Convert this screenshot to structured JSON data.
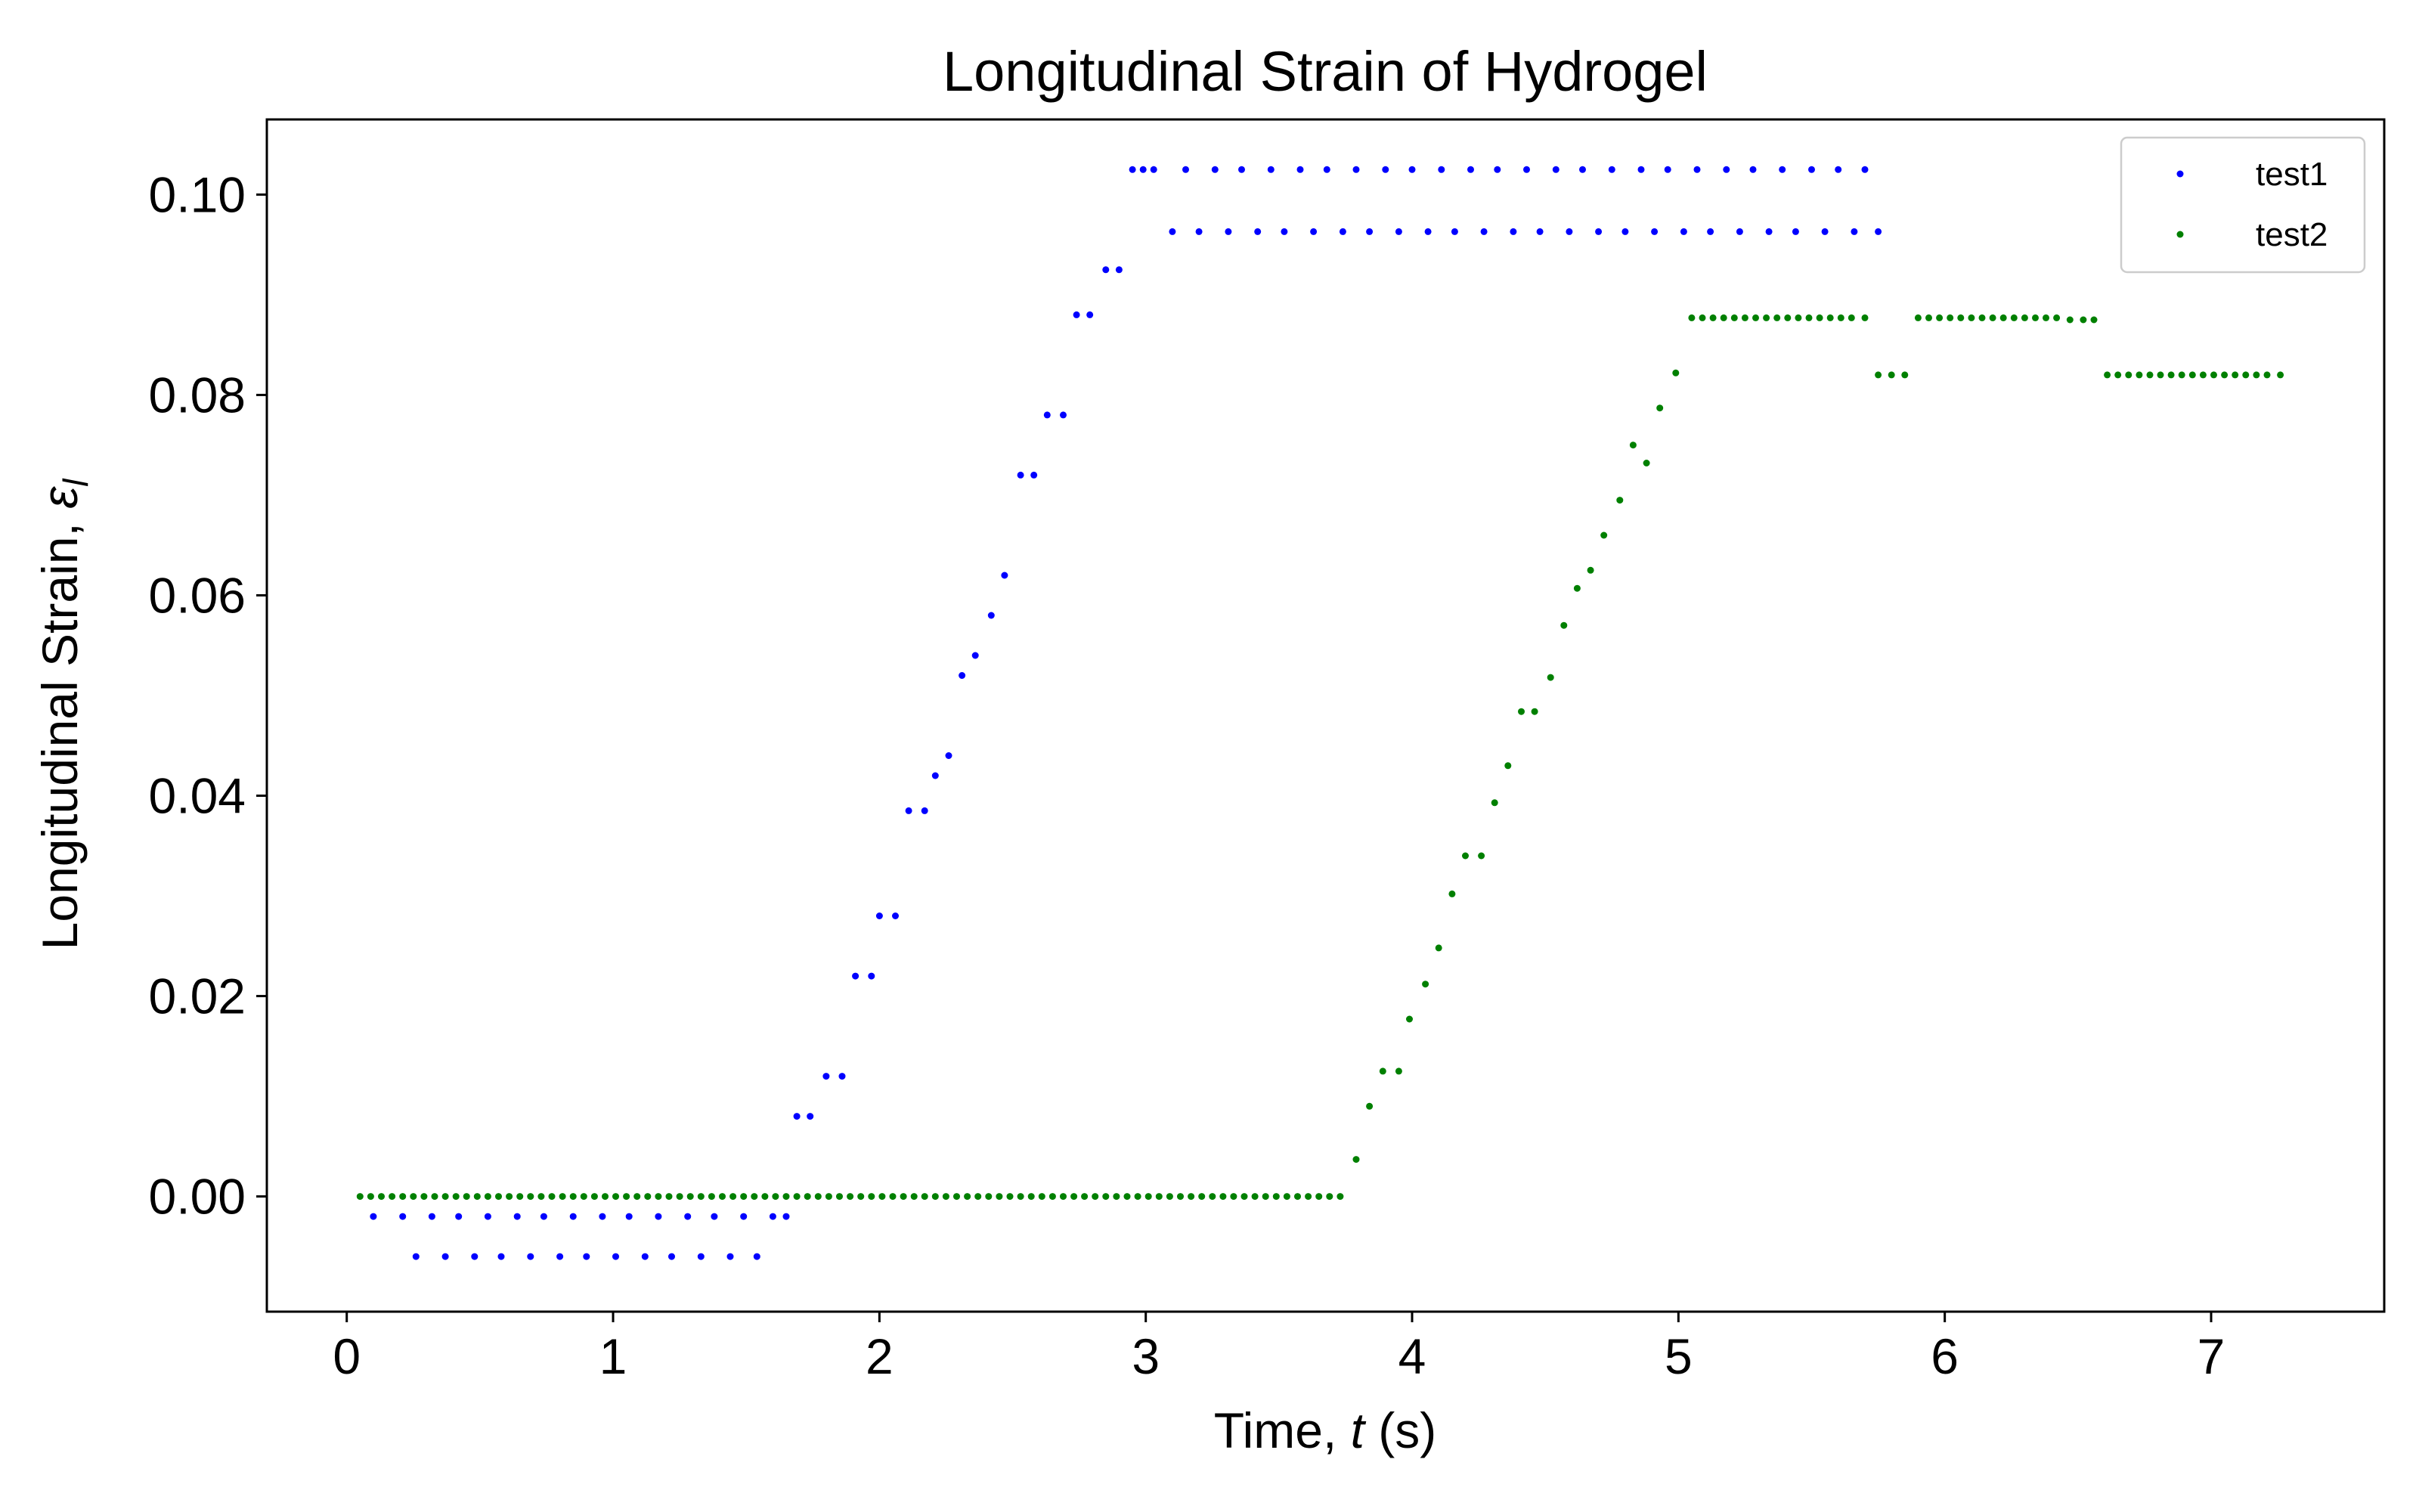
{
  "chart_data": {
    "type": "scatter",
    "title": "Longitudinal Strain of Hydrogel",
    "xlabel_text": "Time, ",
    "xlabel_var": "t",
    "xlabel_unit": " (s)",
    "ylabel_text": "Longitudinal Strain, ",
    "ylabel_var": "ε",
    "ylabel_sub": "l",
    "xlim": [
      -0.3,
      7.65
    ],
    "ylim": [
      -0.0115,
      0.1075
    ],
    "xticks": [
      0,
      1,
      2,
      3,
      4,
      5,
      6,
      7
    ],
    "yticks": [
      0.0,
      0.02,
      0.04,
      0.06,
      0.08,
      0.1
    ],
    "ytick_labels": [
      "0.00",
      "0.02",
      "0.04",
      "0.06",
      "0.08",
      "0.10"
    ],
    "grid": false,
    "legend_position": "top-right",
    "series": [
      {
        "name": "test1",
        "color": "#0000ff",
        "points": [
          [
            0.1,
            -0.002
          ],
          [
            0.21,
            -0.002
          ],
          [
            0.32,
            -0.002
          ],
          [
            0.42,
            -0.002
          ],
          [
            0.53,
            -0.002
          ],
          [
            0.64,
            -0.002
          ],
          [
            0.74,
            -0.002
          ],
          [
            0.85,
            -0.002
          ],
          [
            0.96,
            -0.002
          ],
          [
            1.06,
            -0.002
          ],
          [
            1.17,
            -0.002
          ],
          [
            1.28,
            -0.002
          ],
          [
            1.38,
            -0.002
          ],
          [
            1.49,
            -0.002
          ],
          [
            1.6,
            -0.002
          ],
          [
            1.65,
            -0.002
          ],
          [
            0.26,
            -0.006
          ],
          [
            0.37,
            -0.006
          ],
          [
            0.48,
            -0.006
          ],
          [
            0.58,
            -0.006
          ],
          [
            0.69,
            -0.006
          ],
          [
            0.8,
            -0.006
          ],
          [
            0.9,
            -0.006
          ],
          [
            1.01,
            -0.006
          ],
          [
            1.12,
            -0.006
          ],
          [
            1.22,
            -0.006
          ],
          [
            1.33,
            -0.006
          ],
          [
            1.44,
            -0.006
          ],
          [
            1.54,
            -0.006
          ],
          [
            1.69,
            0.008
          ],
          [
            1.74,
            0.008
          ],
          [
            1.8,
            0.012
          ],
          [
            1.86,
            0.012
          ],
          [
            1.91,
            0.022
          ],
          [
            1.97,
            0.022
          ],
          [
            2.0,
            0.028
          ],
          [
            2.06,
            0.028
          ],
          [
            2.11,
            0.0385
          ],
          [
            2.17,
            0.0385
          ],
          [
            2.21,
            0.042
          ],
          [
            2.26,
            0.044
          ],
          [
            2.31,
            0.052
          ],
          [
            2.36,
            0.054
          ],
          [
            2.42,
            0.058
          ],
          [
            2.47,
            0.062
          ],
          [
            2.53,
            0.072
          ],
          [
            2.58,
            0.072
          ],
          [
            2.63,
            0.078
          ],
          [
            2.69,
            0.078
          ],
          [
            2.74,
            0.088
          ],
          [
            2.79,
            0.088
          ],
          [
            2.85,
            0.0925
          ],
          [
            2.9,
            0.0925
          ],
          [
            2.95,
            0.1025
          ],
          [
            2.99,
            0.1025
          ],
          [
            3.03,
            0.1025
          ],
          [
            3.15,
            0.1025
          ],
          [
            3.26,
            0.1025
          ],
          [
            3.36,
            0.1025
          ],
          [
            3.47,
            0.1025
          ],
          [
            3.58,
            0.1025
          ],
          [
            3.68,
            0.1025
          ],
          [
            3.79,
            0.1025
          ],
          [
            3.9,
            0.1025
          ],
          [
            4.0,
            0.1025
          ],
          [
            4.11,
            0.1025
          ],
          [
            4.22,
            0.1025
          ],
          [
            4.32,
            0.1025
          ],
          [
            4.43,
            0.1025
          ],
          [
            4.54,
            0.1025
          ],
          [
            4.64,
            0.1025
          ],
          [
            4.75,
            0.1025
          ],
          [
            4.86,
            0.1025
          ],
          [
            4.96,
            0.1025
          ],
          [
            5.07,
            0.1025
          ],
          [
            5.18,
            0.1025
          ],
          [
            5.28,
            0.1025
          ],
          [
            5.39,
            0.1025
          ],
          [
            5.5,
            0.1025
          ],
          [
            5.6,
            0.1025
          ],
          [
            5.7,
            0.1025
          ],
          [
            3.1,
            0.0963
          ],
          [
            3.2,
            0.0963
          ],
          [
            3.31,
            0.0963
          ],
          [
            3.42,
            0.0963
          ],
          [
            3.52,
            0.0963
          ],
          [
            3.63,
            0.0963
          ],
          [
            3.74,
            0.0963
          ],
          [
            3.84,
            0.0963
          ],
          [
            3.95,
            0.0963
          ],
          [
            4.06,
            0.0963
          ],
          [
            4.16,
            0.0963
          ],
          [
            4.27,
            0.0963
          ],
          [
            4.38,
            0.0963
          ],
          [
            4.48,
            0.0963
          ],
          [
            4.59,
            0.0963
          ],
          [
            4.7,
            0.0963
          ],
          [
            4.8,
            0.0963
          ],
          [
            4.91,
            0.0963
          ],
          [
            5.02,
            0.0963
          ],
          [
            5.12,
            0.0963
          ],
          [
            5.23,
            0.0963
          ],
          [
            5.34,
            0.0963
          ],
          [
            5.44,
            0.0963
          ],
          [
            5.55,
            0.0963
          ],
          [
            5.66,
            0.0963
          ],
          [
            5.75,
            0.0963
          ]
        ]
      },
      {
        "name": "test2",
        "color": "#008000",
        "points": [
          [
            0.05,
            0
          ],
          [
            0.09,
            0
          ],
          [
            0.13,
            0
          ],
          [
            0.17,
            0
          ],
          [
            0.21,
            0
          ],
          [
            0.25,
            0
          ],
          [
            0.29,
            0
          ],
          [
            0.33,
            0
          ],
          [
            0.37,
            0
          ],
          [
            0.41,
            0
          ],
          [
            0.45,
            0
          ],
          [
            0.49,
            0
          ],
          [
            0.53,
            0
          ],
          [
            0.57,
            0
          ],
          [
            0.61,
            0
          ],
          [
            0.65,
            0
          ],
          [
            0.69,
            0
          ],
          [
            0.73,
            0
          ],
          [
            0.77,
            0
          ],
          [
            0.81,
            0
          ],
          [
            0.85,
            0
          ],
          [
            0.89,
            0
          ],
          [
            0.93,
            0
          ],
          [
            0.97,
            0
          ],
          [
            1.01,
            0
          ],
          [
            1.05,
            0
          ],
          [
            1.09,
            0
          ],
          [
            1.13,
            0
          ],
          [
            1.17,
            0
          ],
          [
            1.21,
            0
          ],
          [
            1.25,
            0
          ],
          [
            1.29,
            0
          ],
          [
            1.33,
            0
          ],
          [
            1.37,
            0
          ],
          [
            1.41,
            0
          ],
          [
            1.45,
            0
          ],
          [
            1.49,
            0
          ],
          [
            1.53,
            0
          ],
          [
            1.57,
            0
          ],
          [
            1.61,
            0
          ],
          [
            1.65,
            0
          ],
          [
            1.69,
            0
          ],
          [
            1.73,
            0
          ],
          [
            1.77,
            0
          ],
          [
            1.81,
            0
          ],
          [
            1.85,
            0
          ],
          [
            1.89,
            0
          ],
          [
            1.93,
            0
          ],
          [
            1.97,
            0
          ],
          [
            2.01,
            0
          ],
          [
            2.05,
            0
          ],
          [
            2.09,
            0
          ],
          [
            2.13,
            0
          ],
          [
            2.17,
            0
          ],
          [
            2.21,
            0
          ],
          [
            2.25,
            0
          ],
          [
            2.29,
            0
          ],
          [
            2.33,
            0
          ],
          [
            2.37,
            0
          ],
          [
            2.41,
            0
          ],
          [
            2.45,
            0
          ],
          [
            2.49,
            0
          ],
          [
            2.53,
            0
          ],
          [
            2.57,
            0
          ],
          [
            2.61,
            0
          ],
          [
            2.65,
            0
          ],
          [
            2.69,
            0
          ],
          [
            2.73,
            0
          ],
          [
            2.77,
            0
          ],
          [
            2.81,
            0
          ],
          [
            2.85,
            0
          ],
          [
            2.89,
            0
          ],
          [
            2.93,
            0
          ],
          [
            2.97,
            0
          ],
          [
            3.01,
            0
          ],
          [
            3.05,
            0
          ],
          [
            3.09,
            0
          ],
          [
            3.13,
            0
          ],
          [
            3.17,
            0
          ],
          [
            3.21,
            0
          ],
          [
            3.25,
            0
          ],
          [
            3.29,
            0
          ],
          [
            3.33,
            0
          ],
          [
            3.37,
            0
          ],
          [
            3.41,
            0
          ],
          [
            3.45,
            0
          ],
          [
            3.49,
            0
          ],
          [
            3.53,
            0
          ],
          [
            3.57,
            0
          ],
          [
            3.61,
            0
          ],
          [
            3.65,
            0
          ],
          [
            3.69,
            0
          ],
          [
            3.73,
            0
          ],
          [
            3.79,
            0.0037
          ],
          [
            3.84,
            0.009
          ],
          [
            3.89,
            0.0125
          ],
          [
            3.95,
            0.0125
          ],
          [
            3.99,
            0.0177
          ],
          [
            4.05,
            0.0212
          ],
          [
            4.1,
            0.0248
          ],
          [
            4.15,
            0.0302
          ],
          [
            4.2,
            0.034
          ],
          [
            4.26,
            0.034
          ],
          [
            4.31,
            0.0393
          ],
          [
            4.36,
            0.043
          ],
          [
            4.41,
            0.0484
          ],
          [
            4.46,
            0.0484
          ],
          [
            4.52,
            0.0518
          ],
          [
            4.57,
            0.057
          ],
          [
            4.62,
            0.0607
          ],
          [
            4.67,
            0.0625
          ],
          [
            4.72,
            0.066
          ],
          [
            4.78,
            0.0695
          ],
          [
            4.83,
            0.075
          ],
          [
            4.88,
            0.0732
          ],
          [
            4.93,
            0.0787
          ],
          [
            4.99,
            0.0822
          ],
          [
            5.05,
            0.0877
          ],
          [
            5.09,
            0.0877
          ],
          [
            5.13,
            0.0877
          ],
          [
            5.17,
            0.0877
          ],
          [
            5.21,
            0.0877
          ],
          [
            5.25,
            0.0877
          ],
          [
            5.29,
            0.0877
          ],
          [
            5.33,
            0.0877
          ],
          [
            5.37,
            0.0877
          ],
          [
            5.41,
            0.0877
          ],
          [
            5.45,
            0.0877
          ],
          [
            5.49,
            0.0877
          ],
          [
            5.53,
            0.0877
          ],
          [
            5.57,
            0.0877
          ],
          [
            5.61,
            0.0877
          ],
          [
            5.65,
            0.0877
          ],
          [
            5.7,
            0.0877
          ],
          [
            5.75,
            0.082
          ],
          [
            5.8,
            0.082
          ],
          [
            5.85,
            0.082
          ],
          [
            5.9,
            0.0877
          ],
          [
            5.94,
            0.0877
          ],
          [
            5.98,
            0.0877
          ],
          [
            6.02,
            0.0877
          ],
          [
            6.06,
            0.0877
          ],
          [
            6.1,
            0.0877
          ],
          [
            6.14,
            0.0877
          ],
          [
            6.18,
            0.0877
          ],
          [
            6.22,
            0.0877
          ],
          [
            6.26,
            0.0877
          ],
          [
            6.3,
            0.0877
          ],
          [
            6.34,
            0.0877
          ],
          [
            6.38,
            0.0877
          ],
          [
            6.42,
            0.0877
          ],
          [
            6.47,
            0.0875
          ],
          [
            6.52,
            0.0875
          ],
          [
            6.56,
            0.0875
          ],
          [
            6.61,
            0.082
          ],
          [
            6.65,
            0.082
          ],
          [
            6.69,
            0.082
          ],
          [
            6.73,
            0.082
          ],
          [
            6.77,
            0.082
          ],
          [
            6.81,
            0.082
          ],
          [
            6.85,
            0.082
          ],
          [
            6.89,
            0.082
          ],
          [
            6.93,
            0.082
          ],
          [
            6.97,
            0.082
          ],
          [
            7.01,
            0.082
          ],
          [
            7.05,
            0.082
          ],
          [
            7.09,
            0.082
          ],
          [
            7.13,
            0.082
          ],
          [
            7.17,
            0.082
          ],
          [
            7.21,
            0.082
          ],
          [
            7.26,
            0.082
          ]
        ]
      }
    ]
  }
}
